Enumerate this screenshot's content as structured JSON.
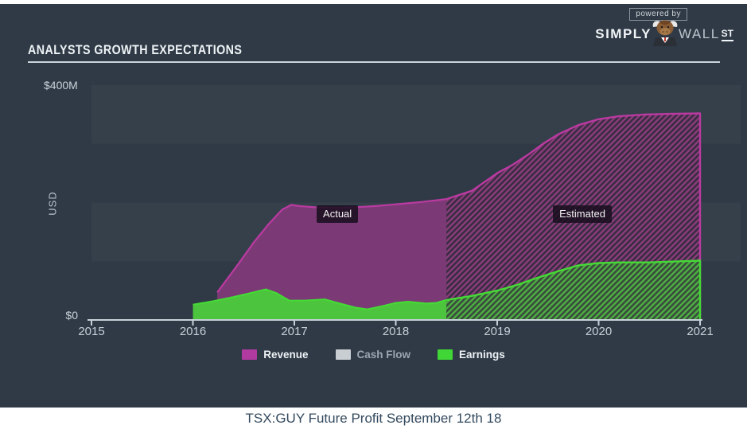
{
  "branding": {
    "powered_by": "powered by",
    "simply": "SIMPLY",
    "wall": "WALL",
    "st": "ST"
  },
  "header": {
    "title": "ANALYSTS GROWTH EXPECTATIONS"
  },
  "caption": "TSX:GUY Future Profit September 12th 18",
  "colors": {
    "panel_bg": "#2f3a46",
    "axis": "#c7d1d9",
    "tick_text": "#c6d0d8",
    "revenue_fill": "#7b3a76",
    "revenue_line": "#bb3aa1",
    "revenue_hatch_bg": "#3c2c45",
    "revenue_hatch_stripe": "#8f3e7d",
    "earnings_fill": "#4cc43d",
    "earnings_line": "#45da35",
    "earnings_hatch_bg": "#3a4d3d",
    "earnings_hatch_stripe": "#4fb543"
  },
  "chart_data": {
    "type": "area",
    "title": "ANALYSTS GROWTH EXPECTATIONS",
    "ylabel": "USD",
    "unit": "USD millions",
    "xlim": [
      2015,
      2021
    ],
    "ylim": [
      0,
      400
    ],
    "x_ticks": [
      "2015",
      "2016",
      "2017",
      "2018",
      "2019",
      "2020",
      "2021"
    ],
    "y_axis_labels": {
      "top": "$400M",
      "zero": "$0"
    },
    "grid": "horizontal-bands-100M",
    "legend_position": "bottom",
    "actual_boundary_x": 2018.5,
    "annotations": [
      {
        "label": "Actual",
        "year": 2017.22,
        "value": 180
      },
      {
        "label": "Estimated",
        "year": 2019.55,
        "value": 181
      }
    ],
    "legend": [
      {
        "label": "Revenue",
        "color": "#b13aa0",
        "muted": false
      },
      {
        "label": "Cash Flow",
        "color": "#c9ced3",
        "muted": true
      },
      {
        "label": "Earnings",
        "color": "#3fd636",
        "muted": false
      }
    ],
    "series": [
      {
        "name": "Revenue",
        "fill": "#7b3a76",
        "line": "#bb3aa1",
        "hatch_bg": "#3c2c45",
        "hatch_stripe": "#8f3e7d",
        "actual": [
          [
            2016.24,
            47
          ],
          [
            2016.33,
            68
          ],
          [
            2016.45,
            96
          ],
          [
            2016.6,
            132
          ],
          [
            2016.75,
            164
          ],
          [
            2016.88,
            188
          ],
          [
            2016.97,
            196
          ],
          [
            2017.05,
            194
          ],
          [
            2017.2,
            192
          ],
          [
            2017.4,
            191
          ],
          [
            2017.6,
            192
          ],
          [
            2017.8,
            194
          ],
          [
            2018.0,
            197
          ],
          [
            2018.25,
            201
          ],
          [
            2018.5,
            206
          ]
        ],
        "estimated": [
          [
            2018.5,
            206
          ],
          [
            2018.75,
            220
          ],
          [
            2019.0,
            250
          ],
          [
            2019.15,
            264
          ],
          [
            2019.3,
            281
          ],
          [
            2019.45,
            300
          ],
          [
            2019.6,
            316
          ],
          [
            2019.8,
            332
          ],
          [
            2020.0,
            342
          ],
          [
            2020.2,
            347
          ],
          [
            2020.45,
            350
          ],
          [
            2020.7,
            351
          ],
          [
            2021.0,
            352
          ]
        ]
      },
      {
        "name": "Earnings",
        "fill": "#4cc43d",
        "line": "#45da35",
        "hatch_bg": "#3a4d3d",
        "hatch_stripe": "#4fb543",
        "actual": [
          [
            2016.0,
            26
          ],
          [
            2016.2,
            32
          ],
          [
            2016.4,
            39
          ],
          [
            2016.55,
            45
          ],
          [
            2016.72,
            52
          ],
          [
            2016.82,
            46
          ],
          [
            2016.95,
            33
          ],
          [
            2017.1,
            33
          ],
          [
            2017.3,
            35
          ],
          [
            2017.45,
            28
          ],
          [
            2017.6,
            21
          ],
          [
            2017.72,
            18
          ],
          [
            2017.88,
            24
          ],
          [
            2018.0,
            29
          ],
          [
            2018.12,
            31
          ],
          [
            2018.3,
            28
          ],
          [
            2018.4,
            29
          ],
          [
            2018.5,
            34
          ]
        ],
        "estimated": [
          [
            2018.5,
            34
          ],
          [
            2018.75,
            41
          ],
          [
            2019.0,
            50
          ],
          [
            2019.2,
            60
          ],
          [
            2019.4,
            72
          ],
          [
            2019.6,
            83
          ],
          [
            2019.8,
            93
          ],
          [
            2020.0,
            97
          ],
          [
            2020.2,
            98
          ],
          [
            2020.5,
            98
          ],
          [
            2020.8,
            100
          ],
          [
            2021.0,
            101
          ]
        ]
      }
    ]
  }
}
